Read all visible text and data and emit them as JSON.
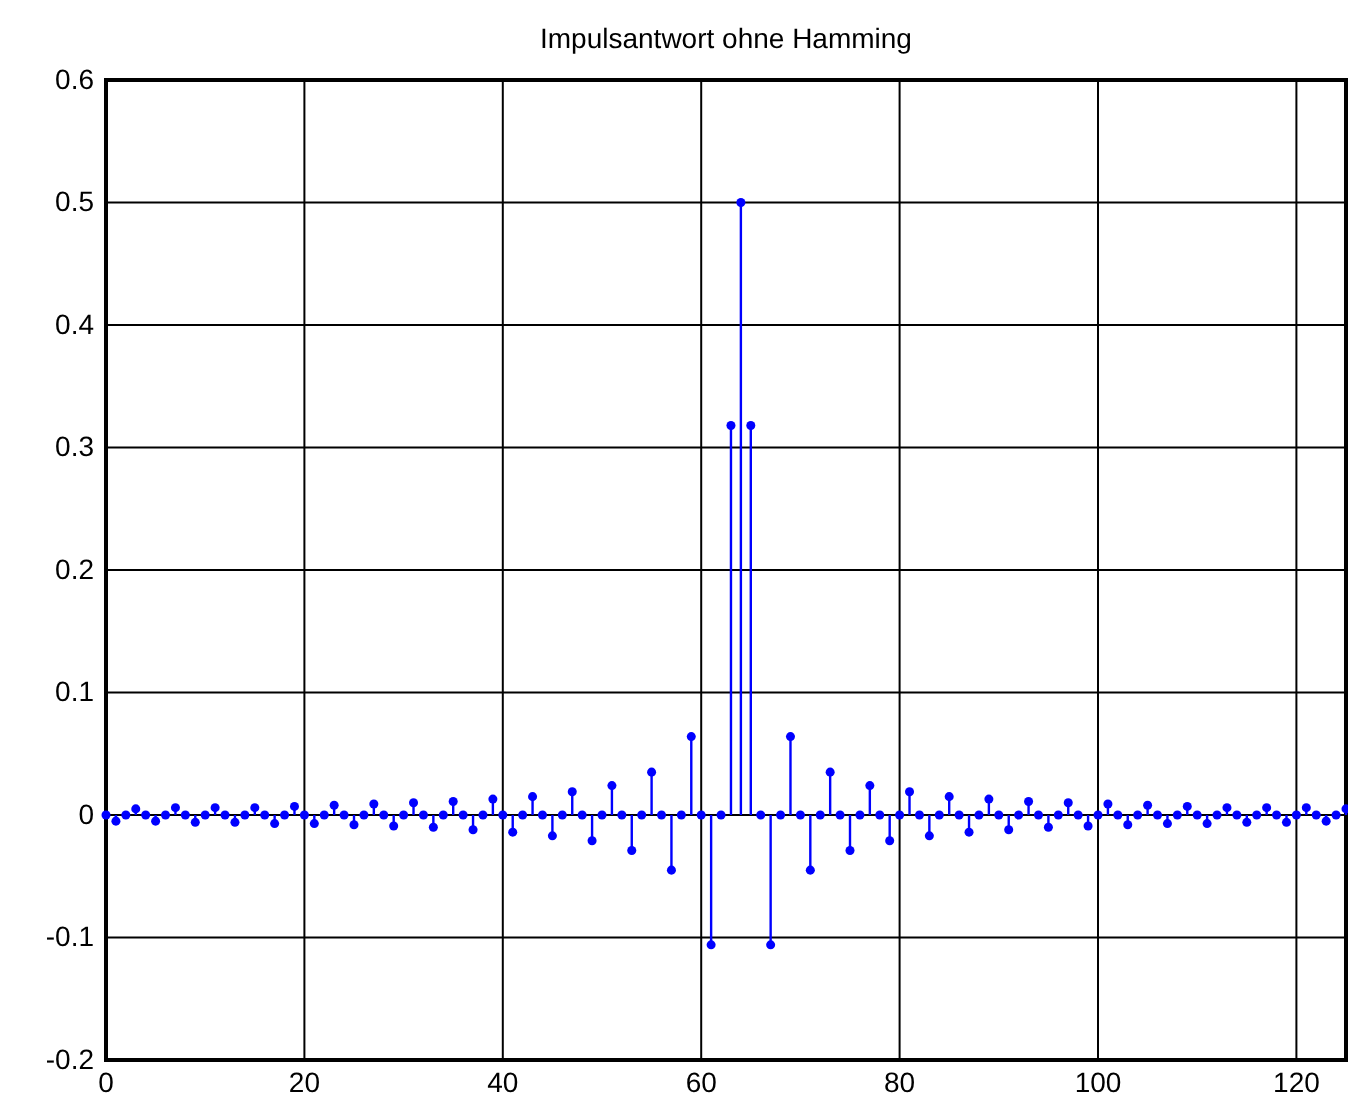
{
  "chart_data": {
    "type": "lollipop",
    "title": "Impulsantwort ohne Hamming",
    "x": [
      0,
      1,
      2,
      3,
      4,
      5,
      6,
      7,
      8,
      9,
      10,
      11,
      12,
      13,
      14,
      15,
      16,
      17,
      18,
      19,
      20,
      21,
      22,
      23,
      24,
      25,
      26,
      27,
      28,
      29,
      30,
      31,
      32,
      33,
      34,
      35,
      36,
      37,
      38,
      39,
      40,
      41,
      42,
      43,
      44,
      45,
      46,
      47,
      48,
      49,
      50,
      51,
      52,
      53,
      54,
      55,
      56,
      57,
      58,
      59,
      60,
      61,
      62,
      63,
      64,
      65,
      66,
      67,
      68,
      69,
      70,
      71,
      72,
      73,
      74,
      75,
      76,
      77,
      78,
      79,
      80,
      81,
      82,
      83,
      84,
      85,
      86,
      87,
      88,
      89,
      90,
      91,
      92,
      93,
      94,
      95,
      96,
      97,
      98,
      99,
      100,
      101,
      102,
      103,
      104,
      105,
      106,
      107,
      108,
      109,
      110,
      111,
      112,
      113,
      114,
      115,
      116,
      117,
      118,
      119,
      120,
      121,
      122,
      123,
      124,
      125
    ],
    "series": [
      {
        "color": "#0000ff",
        "values": [
          0,
          -0.005,
          0,
          0.005,
          0,
          -0.005,
          0,
          0.006,
          0,
          -0.006,
          0,
          0.006,
          0,
          -0.006,
          0,
          0.006,
          0,
          -0.007,
          0,
          0.007,
          0,
          -0.007,
          0,
          0.008,
          0,
          -0.008,
          0,
          0.009,
          0,
          -0.009,
          0,
          0.01,
          0,
          -0.01,
          0,
          0.011,
          0,
          -0.012,
          0,
          0.013,
          0,
          -0.014,
          0,
          0.015,
          0,
          -0.017,
          0,
          0.019,
          0,
          -0.021,
          0,
          0.024,
          0,
          -0.029,
          0,
          0.035,
          0,
          -0.045,
          0,
          0.064,
          0,
          -0.106,
          0,
          0.318,
          0.5,
          0.318,
          0,
          -0.106,
          0,
          0.064,
          0,
          -0.045,
          0,
          0.035,
          0,
          -0.029,
          0,
          0.024,
          0,
          -0.021,
          0,
          0.019,
          0,
          -0.017,
          0,
          0.015,
          0,
          -0.014,
          0,
          0.013,
          0,
          -0.012,
          0,
          0.011,
          0,
          -0.01,
          0,
          0.01,
          0,
          -0.009,
          0,
          0.009,
          0,
          -0.008,
          0,
          0.008,
          0,
          -0.007,
          0,
          0.007,
          0,
          -0.007,
          0,
          0.006,
          0,
          -0.006,
          0,
          0.006,
          0,
          -0.006,
          0,
          0.006,
          0,
          -0.005,
          0,
          0.005
        ]
      }
    ],
    "xlim": [
      0,
      125
    ],
    "xticks": [
      0,
      20,
      40,
      60,
      80,
      100,
      120
    ],
    "ylim": [
      -0.2,
      0.6
    ],
    "yticks": [
      -0.2,
      -0.1,
      0,
      0.1,
      0.2,
      0.3,
      0.4,
      0.5,
      0.6
    ],
    "grid": true,
    "marker": "circle"
  }
}
